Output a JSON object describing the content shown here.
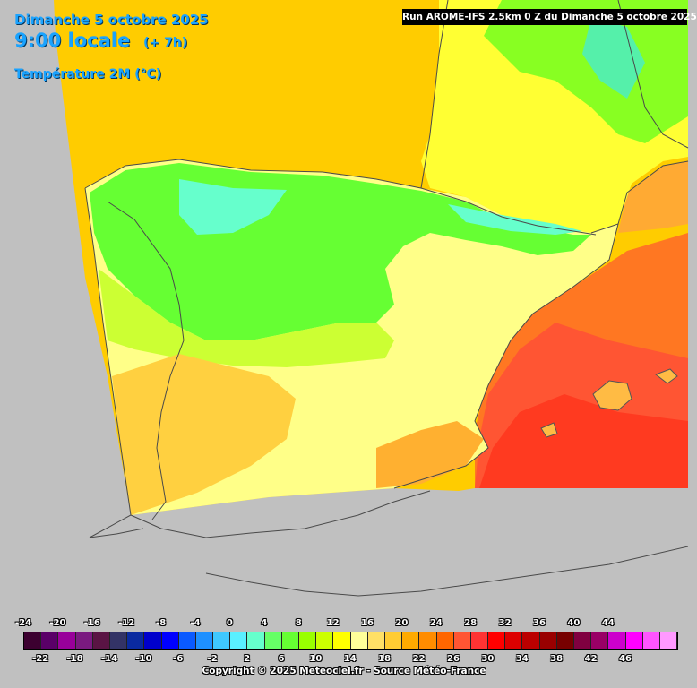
{
  "header": {
    "date": "Dimanche 5 octobre 2025",
    "time": "9:00 locale",
    "lead": "(+ 7h)",
    "variable": "Température 2M (°C)",
    "run": "Run AROME-IFS 2.5km 0 Z du Dimanche 5 octobre 2025"
  },
  "map": {
    "region": "Iberian Peninsula",
    "model_domain_color": "#ffcc00",
    "outside_domain_color": "#c0c0c0",
    "border_color": "#4a4a4a"
  },
  "legend": {
    "upper_ticks": [
      "-24",
      "-20",
      "-16",
      "-12",
      "-8",
      "-4",
      "0",
      "4",
      "8",
      "12",
      "16",
      "20",
      "24",
      "28",
      "32",
      "36",
      "40",
      "44"
    ],
    "lower_ticks": [
      "-22",
      "-18",
      "-14",
      "-10",
      "-6",
      "-2",
      "2",
      "6",
      "10",
      "14",
      "18",
      "22",
      "26",
      "30",
      "34",
      "38",
      "42",
      "46"
    ],
    "colors": [
      "#3c0030",
      "#5a0068",
      "#98009a",
      "#7a1a80",
      "#5a1444",
      "#333366",
      "#0a2aa0",
      "#0000cc",
      "#0000ff",
      "#0a5aff",
      "#1e90ff",
      "#3fc8ff",
      "#5af0ff",
      "#66ffcc",
      "#66ff66",
      "#66ff33",
      "#99ff00",
      "#ccff00",
      "#ffff00",
      "#ffff99",
      "#ffe066",
      "#ffcc33",
      "#ffaa00",
      "#ff8c00",
      "#ff6600",
      "#ff5533",
      "#ff3333",
      "#ff0000",
      "#dd0000",
      "#bb0000",
      "#990000",
      "#770000",
      "#800040",
      "#990066",
      "#cc00cc",
      "#ff00ff",
      "#ff55ff",
      "#ff99ff"
    ]
  },
  "footer": {
    "copyright": "Copyright © 2025 Meteociel.fr - Source Météo-France"
  }
}
